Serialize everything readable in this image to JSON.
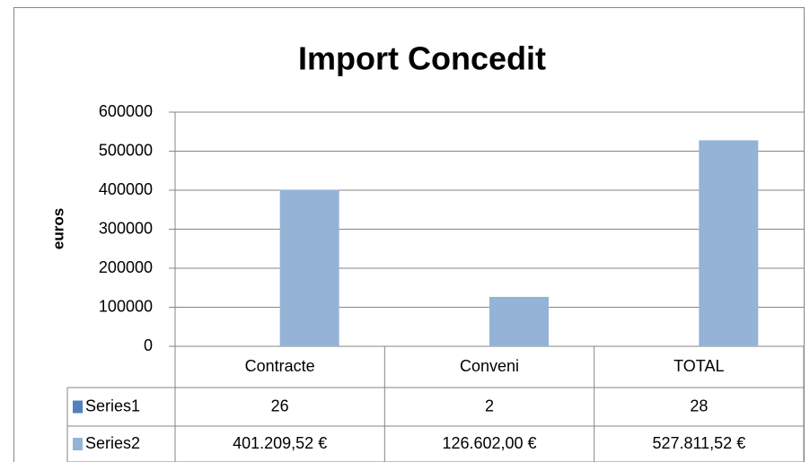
{
  "chart_data": {
    "type": "bar",
    "title": "Import Concedit",
    "y_label": "euros",
    "categories": [
      "Contracte",
      "Conveni",
      "TOTAL"
    ],
    "series": [
      {
        "name": "Series1",
        "color": "#4f81bd",
        "values": [
          26,
          2,
          28
        ]
      },
      {
        "name": "Series2",
        "color": "#95b3d7",
        "values": [
          401209.52,
          126602,
          527811.52
        ],
        "value_labels": [
          "401.209,52 €",
          "126.602,00 €",
          "527.811,52 €"
        ]
      }
    ],
    "ylim": [
      0,
      600000
    ],
    "yticks": [
      0,
      100000,
      200000,
      300000,
      400000,
      500000,
      600000
    ],
    "grid": true,
    "data_table": true
  }
}
